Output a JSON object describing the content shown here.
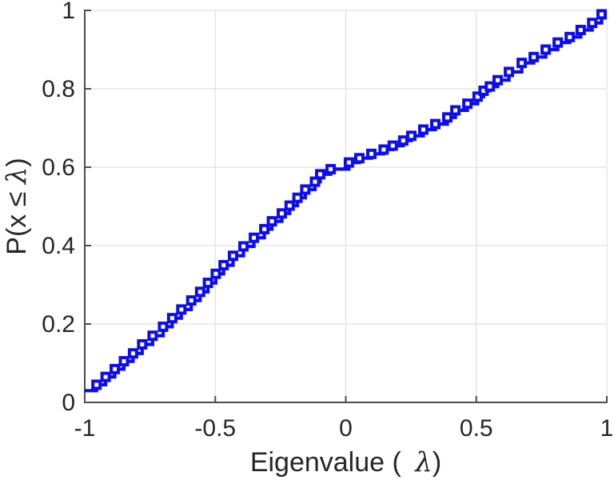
{
  "figure": {
    "background": "#ffffff"
  },
  "chart_data": {
    "type": "line",
    "subtype": "stairstep-ecdf",
    "title": "",
    "xlabel": "Eigenvalue ( λ)",
    "xlabel_parts": {
      "prefix": "Eigenvalue ( ",
      "symbol": "λ",
      "suffix": ")"
    },
    "ylabel": "P(x ≤ λ)",
    "ylabel_parts": {
      "prefix": "P(x ≤ ",
      "symbol": "λ",
      "suffix": ")"
    },
    "xlim": [
      -1,
      1
    ],
    "ylim": [
      0,
      1
    ],
    "x_ticks": [
      -1,
      -0.5,
      0,
      0.5,
      1
    ],
    "x_tick_labels": [
      "-1",
      "-0.5",
      "0",
      "0.5",
      "1"
    ],
    "y_ticks": [
      0,
      0.2,
      0.4,
      0.6,
      0.8,
      1
    ],
    "y_tick_labels": [
      "0",
      "0.2",
      "0.4",
      "0.6",
      "0.8",
      "1"
    ],
    "grid": true,
    "legend": null,
    "axis_color": "#4d4d4d",
    "grid_color": "#e0e0e0",
    "text_color": "#262626",
    "series": [
      {
        "name": "eigenvalue-ecdf",
        "style": "stairs",
        "color": "#0d0dee",
        "marker": "open-square",
        "marker_fill": "#ffffff",
        "start_point": [
          -1,
          0.03
        ],
        "end_x": 1,
        "points": [
          [
            -0.955,
            0.045
          ],
          [
            -0.92,
            0.065
          ],
          [
            -0.885,
            0.085
          ],
          [
            -0.85,
            0.105
          ],
          [
            -0.815,
            0.125
          ],
          [
            -0.78,
            0.148
          ],
          [
            -0.74,
            0.17
          ],
          [
            -0.7,
            0.193
          ],
          [
            -0.665,
            0.215
          ],
          [
            -0.63,
            0.237
          ],
          [
            -0.592,
            0.26
          ],
          [
            -0.558,
            0.282
          ],
          [
            -0.528,
            0.305
          ],
          [
            -0.498,
            0.328
          ],
          [
            -0.468,
            0.35
          ],
          [
            -0.432,
            0.374
          ],
          [
            -0.392,
            0.398
          ],
          [
            -0.352,
            0.42
          ],
          [
            -0.312,
            0.442
          ],
          [
            -0.283,
            0.462
          ],
          [
            -0.245,
            0.482
          ],
          [
            -0.215,
            0.502
          ],
          [
            -0.185,
            0.522
          ],
          [
            -0.155,
            0.543
          ],
          [
            -0.118,
            0.563
          ],
          [
            -0.098,
            0.582
          ],
          [
            -0.058,
            0.595
          ],
          [
            0.012,
            0.612
          ],
          [
            0.052,
            0.623
          ],
          [
            0.098,
            0.634
          ],
          [
            0.145,
            0.645
          ],
          [
            0.18,
            0.655
          ],
          [
            0.22,
            0.668
          ],
          [
            0.251,
            0.68
          ],
          [
            0.297,
            0.696
          ],
          [
            0.343,
            0.71
          ],
          [
            0.389,
            0.727
          ],
          [
            0.42,
            0.745
          ],
          [
            0.466,
            0.762
          ],
          [
            0.505,
            0.78
          ],
          [
            0.528,
            0.795
          ],
          [
            0.552,
            0.806
          ],
          [
            0.582,
            0.822
          ],
          [
            0.625,
            0.843
          ],
          [
            0.674,
            0.866
          ],
          [
            0.72,
            0.881
          ],
          [
            0.766,
            0.9
          ],
          [
            0.812,
            0.918
          ],
          [
            0.858,
            0.932
          ],
          [
            0.9,
            0.95
          ],
          [
            0.944,
            0.968
          ],
          [
            0.98,
            0.99
          ]
        ]
      }
    ]
  }
}
